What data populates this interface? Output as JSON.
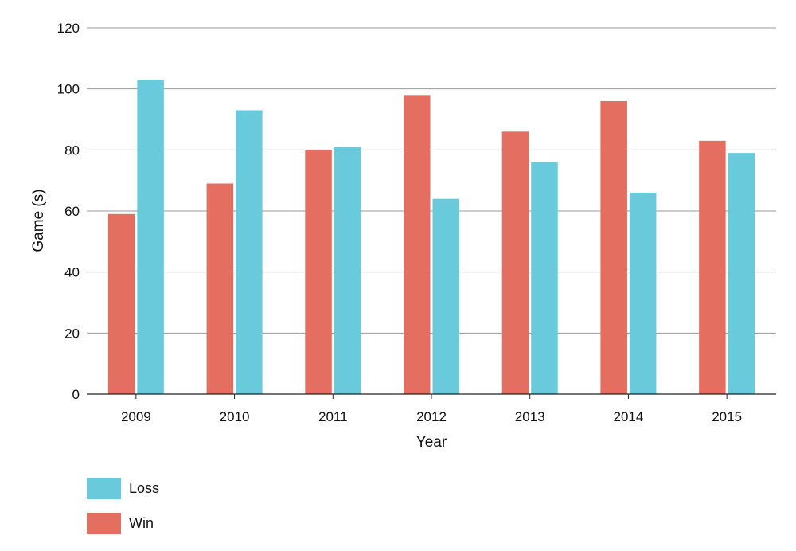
{
  "chart_data": {
    "type": "bar",
    "categories": [
      "2009",
      "2010",
      "2011",
      "2012",
      "2013",
      "2014",
      "2015"
    ],
    "series": [
      {
        "name": "Win",
        "color": "#e46f61",
        "values": [
          59,
          69,
          80,
          98,
          86,
          96,
          83
        ]
      },
      {
        "name": "Loss",
        "color": "#69cadb",
        "values": [
          103,
          93,
          81,
          64,
          76,
          66,
          79
        ]
      }
    ],
    "xlabel": "Year",
    "ylabel": "Game (s)",
    "ylim": [
      0,
      120
    ],
    "yticks": [
      "0",
      "20",
      "40",
      "60",
      "80",
      "100",
      "120"
    ],
    "grid": true,
    "legend_position": "bottom-left"
  },
  "legend": {
    "items": [
      {
        "label": "Loss",
        "color": "#69cadb"
      },
      {
        "label": "Win",
        "color": "#e46f61"
      }
    ]
  }
}
